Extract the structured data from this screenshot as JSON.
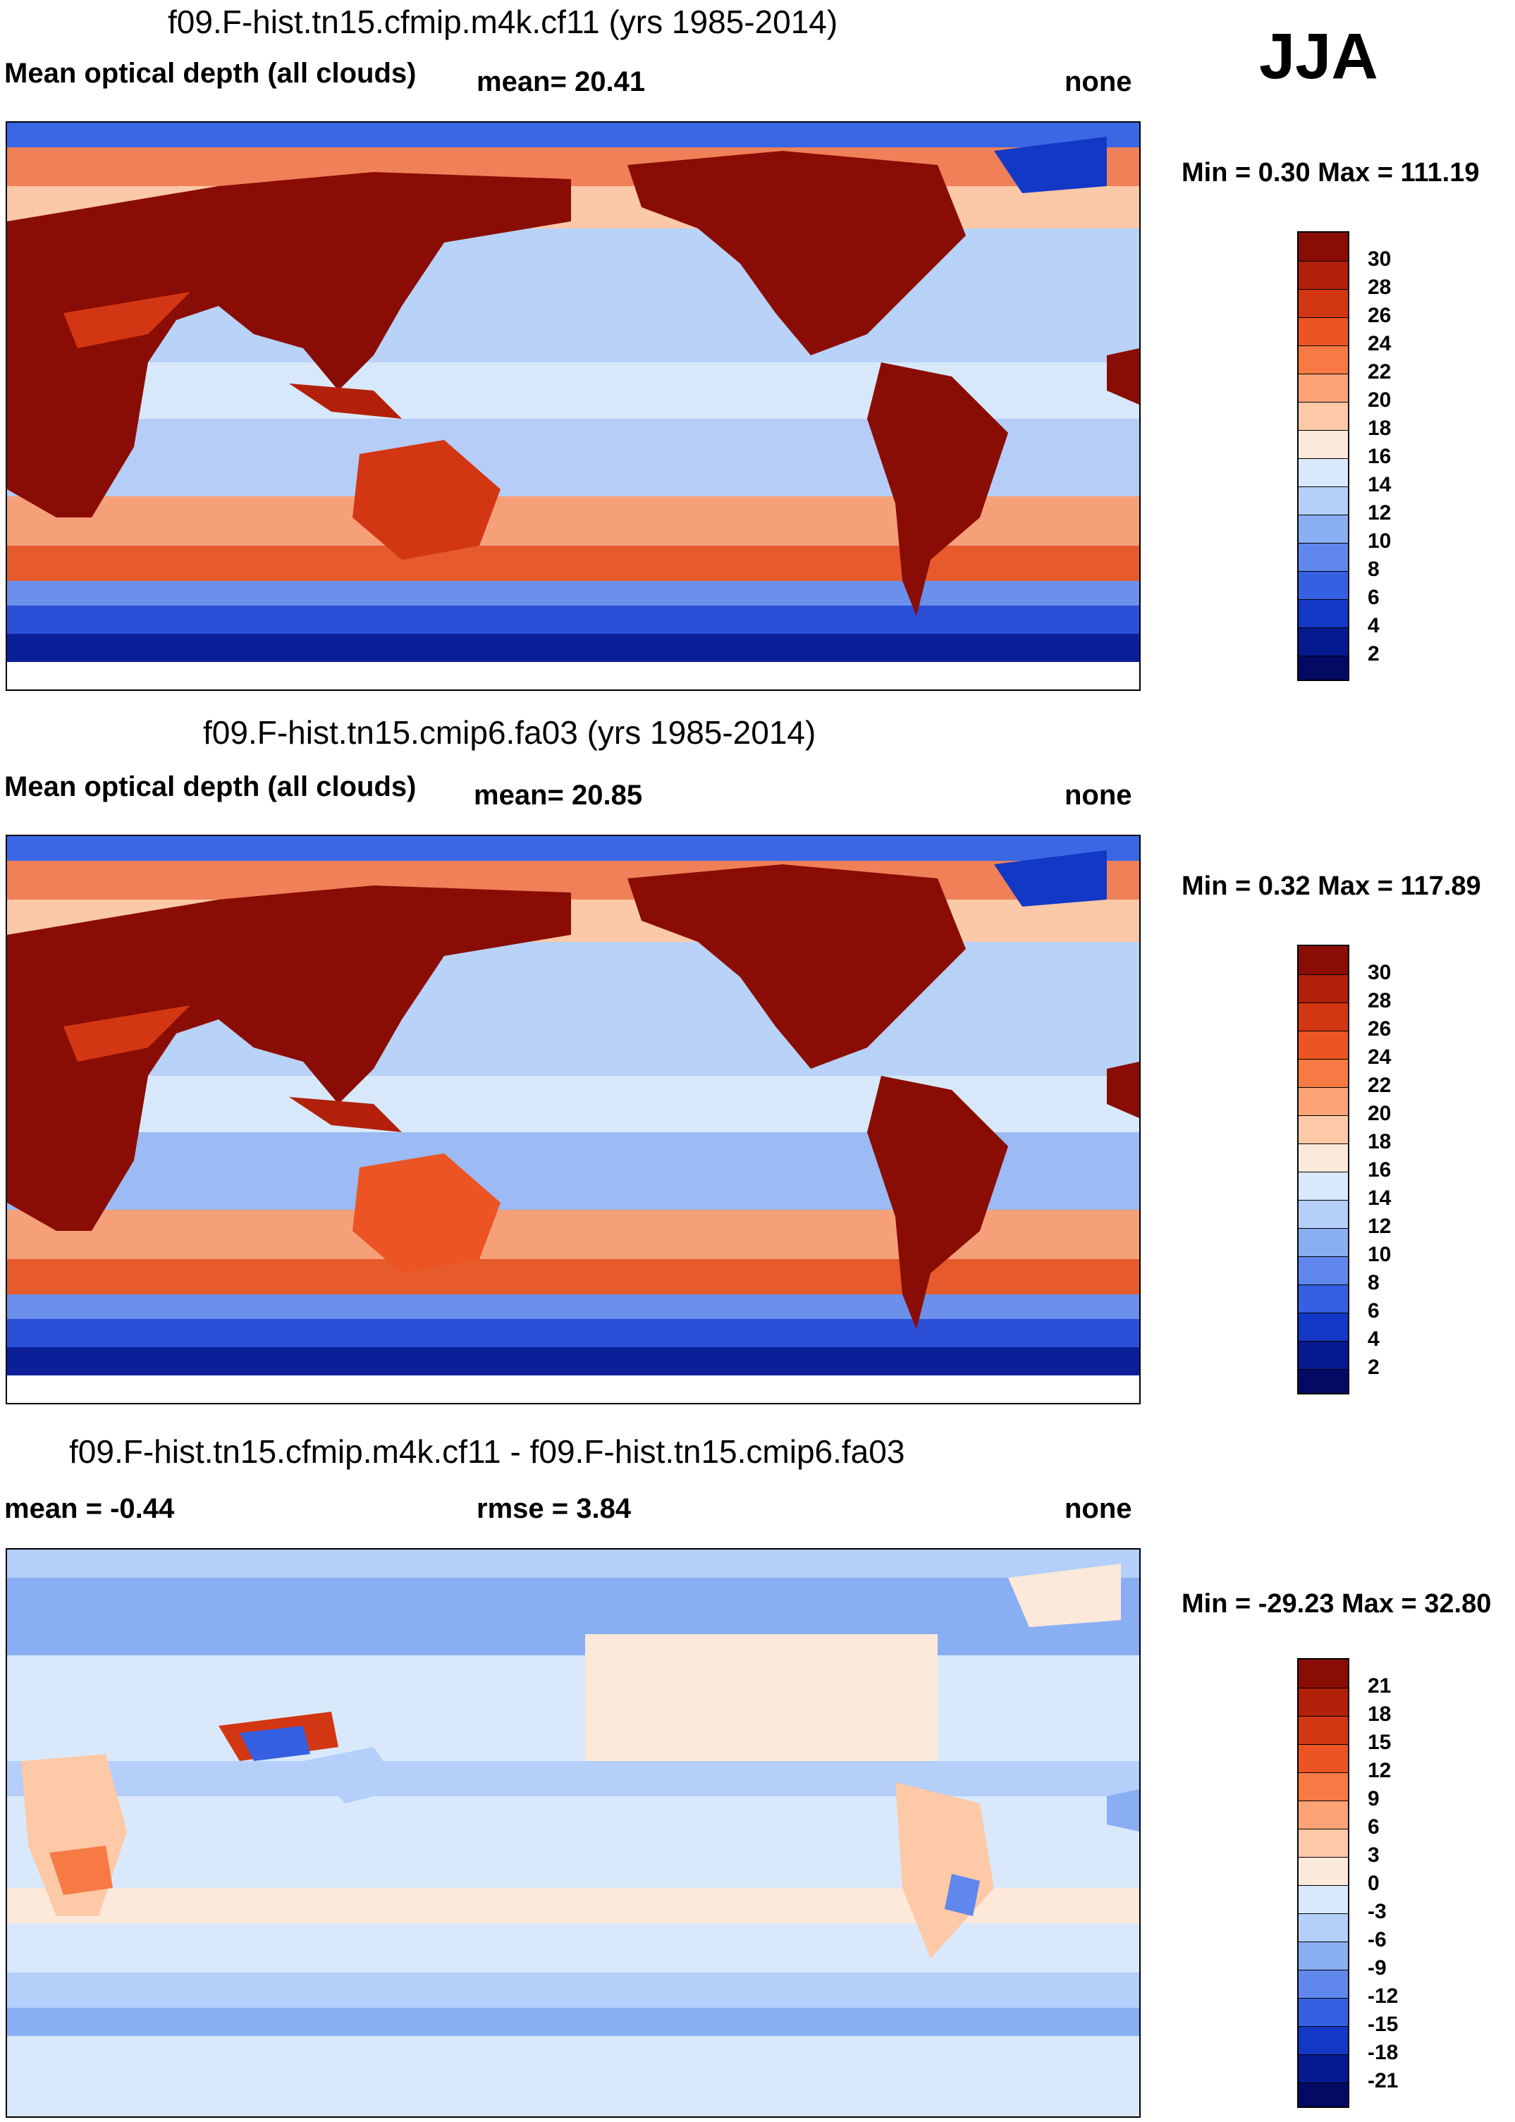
{
  "season": "JJA",
  "panels": [
    {
      "title": "f09.F-hist.tn15.cfmip.m4k.cf11 (yrs 1985-2014)",
      "variable": "Mean optical depth (all clouds)",
      "stat": "mean=  20.41",
      "units": "none",
      "minmax": "Min =   0.30 Max = 111.19",
      "colorbar_labels": [
        "30",
        "28",
        "26",
        "24",
        "22",
        "20",
        "18",
        "16",
        "14",
        "12",
        "10",
        "8",
        "6",
        "4",
        "2"
      ],
      "colors": [
        "#8a0d05",
        "#b2200a",
        "#d33612",
        "#ec5523",
        "#f77a44",
        "#fba376",
        "#fdc9a7",
        "#fde9d9",
        "#d9e9fb",
        "#b3cffa",
        "#8aaef3",
        "#5f87ec",
        "#3560e2",
        "#1438c6",
        "#061a8f",
        "#020a63"
      ]
    },
    {
      "title": "f09.F-hist.tn15.cmip6.fa03 (yrs 1985-2014)",
      "variable": "Mean optical depth (all clouds)",
      "stat": "mean=  20.85",
      "units": "none",
      "minmax": "Min =   0.32 Max = 117.89",
      "colorbar_labels": [
        "30",
        "28",
        "26",
        "24",
        "22",
        "20",
        "18",
        "16",
        "14",
        "12",
        "10",
        "8",
        "6",
        "4",
        "2"
      ],
      "colors": [
        "#8a0d05",
        "#b2200a",
        "#d33612",
        "#ec5523",
        "#f77a44",
        "#fba376",
        "#fdc9a7",
        "#fde9d9",
        "#d9e9fb",
        "#b3cffa",
        "#8aaef3",
        "#5f87ec",
        "#3560e2",
        "#1438c6",
        "#061a8f",
        "#020a63"
      ]
    },
    {
      "title": "f09.F-hist.tn15.cfmip.m4k.cf11 - f09.F-hist.tn15.cmip6.fa03",
      "stat_mean": "mean =  -0.44",
      "stat_rmse": "rmse =    3.84",
      "units": "none",
      "minmax": "Min = -29.23 Max =  32.80",
      "colorbar_labels": [
        "21",
        "18",
        "15",
        "12",
        "9",
        "6",
        "3",
        "0",
        "-3",
        "-6",
        "-9",
        "-12",
        "-15",
        "-18",
        "-21"
      ],
      "colors": [
        "#8a0d05",
        "#b2200a",
        "#d33612",
        "#ec5523",
        "#f77a44",
        "#fba376",
        "#fdc9a7",
        "#fde9d9",
        "#d9e9fb",
        "#b3cffa",
        "#8aaef3",
        "#5f87ec",
        "#3560e2",
        "#1438c6",
        "#061a8f",
        "#020a63"
      ]
    }
  ]
}
